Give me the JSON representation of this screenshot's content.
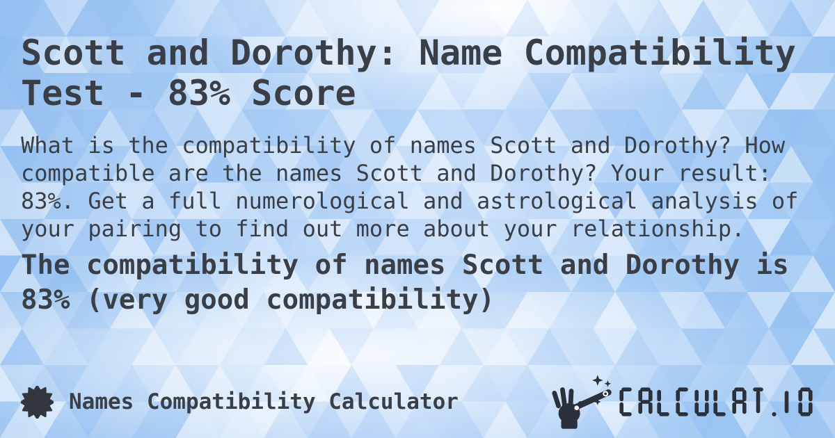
{
  "card": {
    "title": "Scott and Dorothy: Name Compatibility Test - 83% Score",
    "description": "What is the compatibility of names Scott and Dorothy? How compatible are the names Scott and Dorothy? Your result: 83%. Get a full numerological and astrological analysis of your pairing to find out more about your relationship.",
    "result_summary": "The compatibility of names Scott and Dorothy is 83% (very good compatibility)",
    "score": "83%",
    "compatibility_level": "very good compatibility"
  },
  "footer": {
    "calculator_name": "Names Compatibility Calculator",
    "brand_text": "CALCULAT.IO"
  },
  "icons": {
    "footer_left": "starburst-icon",
    "brand": "magic-wand-hand-icon"
  },
  "colors": {
    "text": "#3a3f47",
    "logo": "#2b303a",
    "icon": "#33373d",
    "background_blue": "#a9cdf5",
    "mosaic_white": "#ffffff",
    "mosaic_accent": "#6aa6ef"
  }
}
